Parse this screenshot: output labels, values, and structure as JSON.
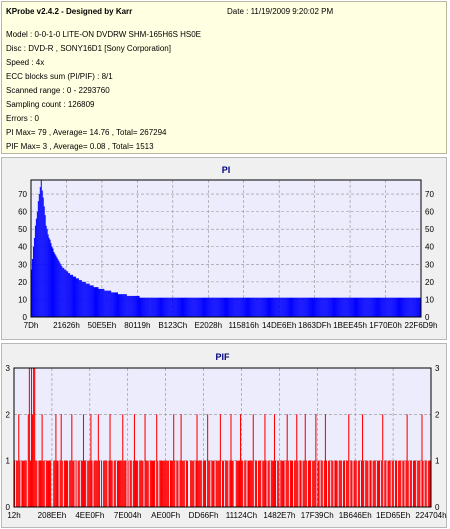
{
  "info": {
    "title": "KProbe v2.4.2 - Designed by Karr",
    "date": "Date : 11/19/2009 9:20:02 PM",
    "lines": [
      "Model : 0-0-1-0 LITE-ON DVDRW SHM-165H6S HS0E",
      "Disc : DVD-R , SONY16D1 [Sony Corporation]",
      "Speed : 4x",
      "ECC blocks sum (PI/PIF) : 8/1",
      "Scanned range : 0 - 2293760",
      "Sampling count : 126809",
      "Errors : 0",
      "PI Max= 79 , Average= 14.76 , Total= 267294",
      "PIF Max= 3 , Average= 0.08 , Total= 1513"
    ]
  },
  "colors": {
    "plot_bg": "#ececfc",
    "pi_series": "#0000ff",
    "pif_series": "#ff0000",
    "grid": "#909090",
    "title_text": "#000080"
  },
  "chart_data": [
    {
      "type": "bar",
      "title": "PI",
      "xlabel": "",
      "ylabel": "",
      "x_tick_labels": [
        "7Dh",
        "21626h",
        "50E5Eh",
        "80119h",
        "B123Ch",
        "E2028h",
        "115816h",
        "14DE6Eh",
        "1863DFh",
        "1BEE45h",
        "1F70E0h",
        "22F6D9h"
      ],
      "y_ticks": [
        0,
        10,
        20,
        30,
        40,
        50,
        60,
        70
      ],
      "ylim": [
        0,
        78
      ],
      "grid": true,
      "series": [
        {
          "values": [
            27,
            33,
            40,
            45,
            52,
            56,
            60,
            66,
            70,
            74,
            79,
            72,
            68,
            63,
            58,
            52,
            50,
            47,
            45,
            44,
            42,
            40,
            39,
            37,
            36,
            35,
            34,
            33,
            32,
            31,
            30,
            29,
            28,
            28,
            27,
            27,
            26,
            26,
            25,
            25,
            24,
            24,
            24,
            23,
            23,
            23,
            22,
            22,
            22,
            21,
            21,
            21,
            20,
            20,
            20,
            20,
            19,
            19,
            19,
            19,
            18,
            18,
            18,
            18,
            17,
            17,
            17,
            17,
            17,
            16,
            16,
            16,
            16,
            16,
            16,
            15,
            15,
            15,
            15,
            15,
            15,
            15,
            14,
            14,
            14,
            14,
            14,
            14,
            14,
            13,
            13,
            13,
            13,
            13,
            13,
            13,
            13,
            13,
            12,
            12,
            12,
            12,
            12,
            12,
            12,
            12,
            12,
            12,
            12,
            12,
            12,
            11,
            11,
            11,
            11,
            11,
            11,
            11,
            11,
            11,
            11,
            11,
            11,
            11,
            11,
            11,
            11,
            11,
            11,
            11,
            11,
            11,
            11,
            11,
            11,
            11,
            11,
            11,
            11,
            11,
            11,
            11,
            11,
            11,
            11,
            11,
            11,
            11,
            11,
            11,
            11,
            11,
            11,
            11,
            11,
            11,
            11,
            11,
            11,
            11,
            11,
            11,
            11,
            11,
            11,
            11,
            11,
            11,
            11,
            11,
            11,
            11,
            11,
            11,
            11,
            11,
            11,
            11,
            11,
            11,
            11,
            11,
            11,
            11,
            11,
            11,
            11,
            11,
            11,
            11,
            11,
            11,
            11,
            11,
            11,
            11,
            11,
            11,
            11,
            11,
            11,
            11,
            11,
            11,
            11,
            11,
            11,
            11,
            11,
            11,
            11,
            11,
            11,
            11,
            11,
            11,
            11,
            11,
            11,
            11,
            11,
            11,
            11,
            11,
            11,
            11,
            11,
            11,
            11,
            11,
            11,
            11,
            11,
            11,
            11,
            11,
            11,
            11,
            11,
            11,
            11,
            11,
            11,
            11,
            11,
            11,
            11,
            11,
            11,
            11,
            11,
            11,
            11,
            11,
            11,
            11,
            11,
            11,
            11,
            11,
            11,
            11,
            11,
            11,
            11,
            11,
            11,
            11,
            11,
            11,
            11,
            11,
            11,
            11,
            11,
            11,
            11,
            11,
            11,
            11,
            11,
            11,
            11,
            11,
            11,
            11,
            11,
            11,
            11,
            11,
            11,
            11,
            11,
            11,
            11,
            11,
            11,
            11,
            11,
            11,
            11,
            11,
            11,
            11,
            11,
            11,
            11,
            11,
            11,
            11,
            11,
            11,
            11,
            11,
            11,
            11,
            11,
            11,
            11,
            11,
            11,
            11,
            11,
            11,
            11,
            11,
            11,
            11,
            11,
            11,
            11,
            11,
            11,
            11,
            11,
            11,
            11,
            11,
            11,
            11,
            11,
            11,
            11,
            11,
            11,
            11,
            11,
            11,
            11,
            11,
            11,
            11,
            11,
            11,
            11,
            11,
            11,
            11,
            11,
            11,
            11,
            11,
            11,
            11,
            11,
            11,
            11,
            11,
            11,
            11,
            11,
            11,
            11,
            11,
            11,
            11,
            11,
            11,
            11,
            11,
            11,
            11,
            11,
            11,
            11,
            11,
            11,
            11,
            11,
            11,
            11,
            11,
            11,
            11,
            11,
            11,
            11,
            11,
            11
          ]
        }
      ]
    },
    {
      "type": "bar",
      "title": "PIF",
      "xlabel": "",
      "ylabel": "",
      "x_tick_labels": [
        "12h",
        "208EEh",
        "4EE0Fh",
        "7E004h",
        "AE00Fh",
        "DD66Fh",
        "11124Ch",
        "1482E7h",
        "17F39Ch",
        "1B646Eh",
        "1ED65Eh",
        "224704h"
      ],
      "y_ticks": [
        0,
        1,
        2,
        3
      ],
      "ylim": [
        0,
        3
      ],
      "grid": true,
      "series": [
        {
          "values": [
            1,
            0,
            1,
            1,
            2,
            1,
            0,
            1,
            1,
            1,
            1,
            1,
            0,
            2,
            3,
            1,
            3,
            2,
            3,
            3,
            1,
            1,
            0,
            1,
            1,
            1,
            2,
            1,
            1,
            0,
            1,
            1,
            1,
            1,
            1,
            0,
            0,
            1,
            1,
            2,
            1,
            1,
            0,
            1,
            2,
            1,
            0,
            1,
            1,
            1,
            1,
            0,
            1,
            1,
            2,
            1,
            1,
            0,
            1,
            0,
            1,
            1,
            0,
            1,
            1,
            2,
            1,
            1,
            0,
            1,
            1,
            1,
            2,
            1,
            0,
            1,
            1,
            1,
            1,
            2,
            1,
            0,
            1,
            0,
            1,
            1,
            1,
            1,
            0,
            1,
            2,
            1,
            1,
            0,
            1,
            1,
            0,
            1,
            1,
            1,
            1,
            1,
            2,
            1,
            1,
            1,
            0,
            1,
            0,
            1,
            1,
            0,
            1,
            2,
            1,
            1,
            1,
            0,
            1,
            1,
            1,
            1,
            0,
            2,
            1,
            1,
            1,
            0,
            1,
            1,
            1,
            1,
            1,
            0,
            2,
            1,
            0,
            1,
            1,
            1,
            1,
            1,
            1,
            1,
            1,
            1,
            0,
            1,
            1,
            1,
            2,
            1,
            0,
            1,
            1,
            0,
            1,
            2,
            1,
            1,
            1,
            0,
            1,
            1,
            0,
            0,
            1,
            1,
            1,
            1,
            0,
            1,
            2,
            1,
            1,
            1,
            1,
            0,
            1,
            1,
            1,
            0,
            2,
            1,
            1,
            0,
            1,
            1,
            1,
            0,
            1,
            1,
            1,
            1,
            2,
            0,
            1,
            1,
            0,
            1,
            1,
            1,
            0,
            1,
            2,
            1,
            1,
            0,
            0,
            1,
            1,
            1,
            1,
            2,
            1,
            1,
            0,
            1,
            1,
            0,
            1,
            1,
            1,
            1,
            1,
            2,
            0,
            1,
            1,
            0,
            1,
            1,
            1,
            0,
            1,
            1,
            2,
            1,
            0,
            1,
            1,
            0,
            1,
            1,
            1,
            2,
            1,
            0,
            1,
            1,
            0,
            1,
            1,
            1,
            1,
            0,
            1,
            2,
            1,
            0,
            1,
            1,
            1,
            0,
            1,
            1,
            2,
            1,
            0,
            1,
            1,
            0,
            1,
            1,
            2,
            1,
            0,
            1,
            1,
            1,
            0,
            1,
            1,
            1,
            2,
            0,
            1,
            1,
            0,
            1,
            1,
            0,
            1,
            2,
            1,
            0,
            1,
            1,
            0,
            1,
            1,
            0,
            1,
            1,
            1,
            0,
            1,
            1,
            1,
            0,
            1,
            1,
            0,
            1,
            1,
            2,
            0,
            1,
            1,
            0,
            1,
            1,
            1,
            0,
            1,
            1,
            0,
            1,
            2,
            1,
            0,
            1,
            1,
            1,
            0,
            1,
            1,
            0,
            1,
            1,
            1,
            0,
            1,
            1,
            1,
            0,
            1,
            2,
            0,
            1,
            1,
            0,
            1,
            1,
            1,
            0,
            1,
            1,
            0,
            1,
            1,
            0,
            1,
            1,
            1,
            0,
            1,
            1,
            0,
            1,
            2,
            1,
            0,
            1,
            1,
            0,
            1,
            1,
            1,
            0,
            1,
            1,
            1,
            0,
            2,
            1,
            0,
            1,
            1,
            0,
            1,
            1,
            1
          ]
        }
      ]
    }
  ]
}
